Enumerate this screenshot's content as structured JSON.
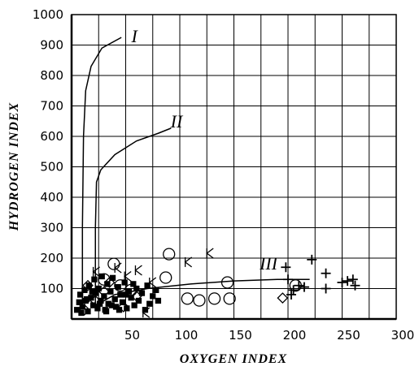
{
  "chart_data": {
    "type": "scatter",
    "xlabel": "OXYGEN INDEX",
    "ylabel": "HYDROGEN INDEX",
    "xlim": [
      0,
      300
    ],
    "ylim": [
      0,
      1000
    ],
    "xticks": [
      50,
      100,
      150,
      200,
      250,
      300
    ],
    "xminor": [
      25,
      75,
      125,
      175,
      225,
      275
    ],
    "yticks": [
      100,
      200,
      300,
      400,
      500,
      600,
      700,
      800,
      900,
      1000
    ],
    "grid": true,
    "color": "#000000",
    "curves": [
      {
        "label": "I",
        "label_x": 58,
        "label_y": 928,
        "x": [
          10,
          10,
          11,
          13,
          18,
          28,
          46
        ],
        "y": [
          40,
          300,
          600,
          750,
          830,
          890,
          925
        ]
      },
      {
        "label": "II",
        "label_x": 97,
        "label_y": 648,
        "x": [
          22,
          22,
          23,
          27,
          40,
          60,
          80,
          92
        ],
        "y": [
          30,
          300,
          450,
          490,
          540,
          585,
          610,
          627
        ]
      },
      {
        "label": "III",
        "label_x": 182,
        "label_y": 181,
        "x": [
          20,
          40,
          70,
          110,
          150,
          190,
          220
        ],
        "y": [
          40,
          80,
          100,
          115,
          125,
          130,
          130
        ]
      }
    ],
    "series": [
      {
        "marker": "plus",
        "x": [
          198,
          200,
          205,
          210,
          215,
          222,
          235,
          235,
          250,
          255,
          260,
          262,
          203
        ],
        "values": [
          170,
          130,
          95,
          110,
          105,
          195,
          150,
          100,
          120,
          125,
          130,
          110,
          80
        ]
      },
      {
        "marker": "circle",
        "x": [
          39,
          90,
          107,
          118,
          132,
          146,
          144,
          87,
          45,
          55,
          30,
          207
        ],
        "values": [
          181,
          213,
          67,
          61,
          67,
          67,
          120,
          136,
          110,
          95,
          130,
          110
        ]
      },
      {
        "marker": "diamond",
        "x": [
          195,
          15,
          22,
          30,
          48,
          60,
          12,
          35
        ],
        "values": [
          69,
          110,
          60,
          90,
          40,
          75,
          30,
          120
        ]
      },
      {
        "marker": "k",
        "x": [
          43,
          62,
          108,
          128,
          23,
          69,
          52,
          75
        ],
        "values": [
          168,
          160,
          187,
          216,
          155,
          21,
          140,
          120
        ]
      },
      {
        "marker": "dot",
        "x": [
          5,
          7,
          8,
          10,
          12,
          13,
          15,
          16,
          18,
          20,
          21,
          22,
          24,
          25,
          27,
          28,
          30,
          31,
          33,
          34,
          36,
          38,
          40,
          41,
          43,
          45,
          47,
          49,
          51,
          53,
          55,
          58,
          60,
          62,
          65,
          68,
          70,
          72,
          75,
          78,
          80,
          9,
          14,
          19,
          26,
          32,
          37,
          44,
          50,
          57
        ],
        "values": [
          30,
          55,
          80,
          40,
          95,
          60,
          25,
          110,
          70,
          45,
          130,
          85,
          35,
          100,
          60,
          140,
          75,
          30,
          115,
          50,
          90,
          135,
          65,
          40,
          105,
          80,
          55,
          120,
          35,
          90,
          70,
          45,
          100,
          60,
          85,
          30,
          110,
          50,
          75,
          95,
          60,
          20,
          65,
          90,
          50,
          25,
          45,
          30,
          80,
          115
        ]
      }
    ]
  }
}
